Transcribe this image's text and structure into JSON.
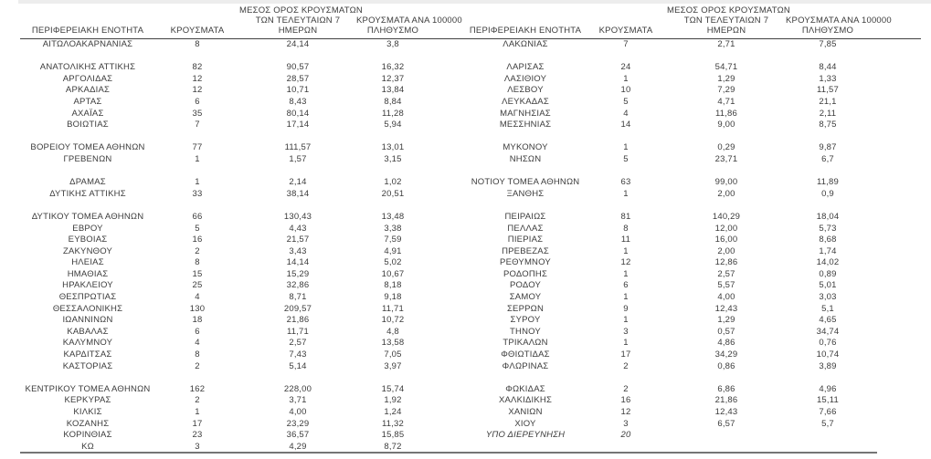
{
  "colors": {
    "text": "#3c3c3c",
    "header_rule": "#404040",
    "bottom_rule": "#757575",
    "top_strip": "#ededed",
    "background": "#ffffff"
  },
  "table": {
    "headers": {
      "region": "ΠΕΡΙΦΕΡΕΙΑΚΗ ΕΝΟΤΗΤΑ",
      "cases": "ΚΡΟΥΣΜΑΤΑ",
      "avg7_line1": "ΜΕΣΟΣ ΟΡΟΣ ΚΡΟΥΣΜΑΤΩΝ",
      "avg7_line2": "ΤΩΝ ΤΕΛΕΥΤΑΙΩΝ 7",
      "avg7_line3": "ΗΜΕΡΩΝ",
      "per100k_line1": "ΚΡΟΥΣΜΑΤΑ ΑΝΑ 100000",
      "per100k_line2": "ΠΛΗΘΥΣΜΟ"
    },
    "rows": [
      {
        "left": {
          "region": "ΑΙΤΩΛΟΑΚΑΡΝΑΝΙΑΣ",
          "cases": "8",
          "avg7": "24,14",
          "per100k": "3,8"
        },
        "right": {
          "region": "ΛΑΚΩΝΙΑΣ",
          "cases": "7",
          "avg7": "2,71",
          "per100k": "7,85"
        }
      },
      {
        "spacer": true
      },
      {
        "left": {
          "region": "ΑΝΑΤΟΛΙΚΗΣ ΑΤΤΙΚΗΣ",
          "cases": "82",
          "avg7": "90,57",
          "per100k": "16,32"
        },
        "right": {
          "region": "ΛΑΡΙΣΑΣ",
          "cases": "24",
          "avg7": "54,71",
          "per100k": "8,44"
        }
      },
      {
        "left": {
          "region": "ΑΡΓΟΛΙΔΑΣ",
          "cases": "12",
          "avg7": "28,57",
          "per100k": "12,37"
        },
        "right": {
          "region": "ΛΑΣΙΘΙΟΥ",
          "cases": "1",
          "avg7": "1,29",
          "per100k": "1,33"
        }
      },
      {
        "left": {
          "region": "ΑΡΚΑΔΙΑΣ",
          "cases": "12",
          "avg7": "10,71",
          "per100k": "13,84"
        },
        "right": {
          "region": "ΛΕΣΒΟΥ",
          "cases": "10",
          "avg7": "7,29",
          "per100k": "11,57"
        }
      },
      {
        "left": {
          "region": "ΑΡΤΑΣ",
          "cases": "6",
          "avg7": "8,43",
          "per100k": "8,84"
        },
        "right": {
          "region": "ΛΕΥΚΑΔΑΣ",
          "cases": "5",
          "avg7": "4,71",
          "per100k": "21,1"
        }
      },
      {
        "left": {
          "region": "ΑΧΑΪΑΣ",
          "cases": "35",
          "avg7": "80,14",
          "per100k": "11,28"
        },
        "right": {
          "region": "ΜΑΓΝΗΣΙΑΣ",
          "cases": "4",
          "avg7": "11,86",
          "per100k": "2,11"
        }
      },
      {
        "left": {
          "region": "ΒΟΙΩΤΙΑΣ",
          "cases": "7",
          "avg7": "17,14",
          "per100k": "5,94"
        },
        "right": {
          "region": "ΜΕΣΣΗΝΙΑΣ",
          "cases": "14",
          "avg7": "9,00",
          "per100k": "8,75"
        }
      },
      {
        "spacer": true
      },
      {
        "left": {
          "region": "ΒΟΡΕΙΟΥ ΤΟΜΕΑ ΑΘΗΝΩΝ",
          "cases": "77",
          "avg7": "111,57",
          "per100k": "13,01"
        },
        "right": {
          "region": "ΜΥΚΟΝΟΥ",
          "cases": "1",
          "avg7": "0,29",
          "per100k": "9,87"
        }
      },
      {
        "left": {
          "region": "ΓΡΕΒΕΝΩΝ",
          "cases": "1",
          "avg7": "1,57",
          "per100k": "3,15"
        },
        "right": {
          "region": "ΝΗΣΩΝ",
          "cases": "5",
          "avg7": "23,71",
          "per100k": "6,7"
        }
      },
      {
        "spacer": true
      },
      {
        "left": {
          "region": "ΔΡΑΜΑΣ",
          "cases": "1",
          "avg7": "2,14",
          "per100k": "1,02"
        },
        "right": {
          "region": "ΝΟΤΙΟΥ ΤΟΜΕΑ ΑΘΗΝΩΝ",
          "cases": "63",
          "avg7": "99,00",
          "per100k": "11,89"
        }
      },
      {
        "left": {
          "region": "ΔΥΤΙΚΗΣ ΑΤΤΙΚΗΣ",
          "cases": "33",
          "avg7": "38,14",
          "per100k": "20,51"
        },
        "right": {
          "region": "ΞΑΝΘΗΣ",
          "cases": "1",
          "avg7": "2,00",
          "per100k": "0,9"
        }
      },
      {
        "spacer": true
      },
      {
        "left": {
          "region": "ΔΥΤΙΚΟΥ ΤΟΜΕΑ ΑΘΗΝΩΝ",
          "cases": "66",
          "avg7": "130,43",
          "per100k": "13,48"
        },
        "right": {
          "region": "ΠΕΙΡΑΙΩΣ",
          "cases": "81",
          "avg7": "140,29",
          "per100k": "18,04"
        }
      },
      {
        "left": {
          "region": "ΕΒΡΟΥ",
          "cases": "5",
          "avg7": "4,43",
          "per100k": "3,38"
        },
        "right": {
          "region": "ΠΕΛΛΑΣ",
          "cases": "8",
          "avg7": "12,00",
          "per100k": "5,73"
        }
      },
      {
        "left": {
          "region": "ΕΥΒΟΙΑΣ",
          "cases": "16",
          "avg7": "21,57",
          "per100k": "7,59"
        },
        "right": {
          "region": "ΠΙΕΡΙΑΣ",
          "cases": "11",
          "avg7": "16,00",
          "per100k": "8,68"
        }
      },
      {
        "left": {
          "region": "ΖΑΚΥΝΘΟΥ",
          "cases": "2",
          "avg7": "3,43",
          "per100k": "4,91"
        },
        "right": {
          "region": "ΠΡΕΒΕΖΑΣ",
          "cases": "1",
          "avg7": "2,00",
          "per100k": "1,74"
        }
      },
      {
        "left": {
          "region": "ΗΛΕΙΑΣ",
          "cases": "8",
          "avg7": "14,14",
          "per100k": "5,02"
        },
        "right": {
          "region": "ΡΕΘΥΜΝΟΥ",
          "cases": "12",
          "avg7": "12,86",
          "per100k": "14,02"
        }
      },
      {
        "left": {
          "region": "ΗΜΑΘΙΑΣ",
          "cases": "15",
          "avg7": "15,29",
          "per100k": "10,67"
        },
        "right": {
          "region": "ΡΟΔΟΠΗΣ",
          "cases": "1",
          "avg7": "2,57",
          "per100k": "0,89"
        }
      },
      {
        "left": {
          "region": "ΗΡΑΚΛΕΙΟΥ",
          "cases": "25",
          "avg7": "32,86",
          "per100k": "8,18"
        },
        "right": {
          "region": "ΡΟΔΟΥ",
          "cases": "6",
          "avg7": "5,57",
          "per100k": "5,01"
        }
      },
      {
        "left": {
          "region": "ΘΕΣΠΡΩΤΙΑΣ",
          "cases": "4",
          "avg7": "8,71",
          "per100k": "9,18"
        },
        "right": {
          "region": "ΣΑΜΟΥ",
          "cases": "1",
          "avg7": "4,00",
          "per100k": "3,03"
        }
      },
      {
        "left": {
          "region": "ΘΕΣΣΑΛΟΝΙΚΗΣ",
          "cases": "130",
          "avg7": "209,57",
          "per100k": "11,71"
        },
        "right": {
          "region": "ΣΕΡΡΩΝ",
          "cases": "9",
          "avg7": "12,43",
          "per100k": "5,1"
        }
      },
      {
        "left": {
          "region": "ΙΩΑΝΝΙΝΩΝ",
          "cases": "18",
          "avg7": "21,86",
          "per100k": "10,72"
        },
        "right": {
          "region": "ΣΥΡΟΥ",
          "cases": "1",
          "avg7": "1,29",
          "per100k": "4,65"
        }
      },
      {
        "left": {
          "region": "ΚΑΒΑΛΑΣ",
          "cases": "6",
          "avg7": "11,71",
          "per100k": "4,8"
        },
        "right": {
          "region": "ΤΗΝΟΥ",
          "cases": "3",
          "avg7": "0,57",
          "per100k": "34,74"
        }
      },
      {
        "left": {
          "region": "ΚΑΛΥΜΝΟΥ",
          "cases": "4",
          "avg7": "2,57",
          "per100k": "13,58"
        },
        "right": {
          "region": "ΤΡΙΚΑΛΩΝ",
          "cases": "1",
          "avg7": "4,86",
          "per100k": "0,76"
        }
      },
      {
        "left": {
          "region": "ΚΑΡΔΙΤΣΑΣ",
          "cases": "8",
          "avg7": "7,43",
          "per100k": "7,05"
        },
        "right": {
          "region": "ΦΘΙΩΤΙΔΑΣ",
          "cases": "17",
          "avg7": "34,29",
          "per100k": "10,74"
        }
      },
      {
        "left": {
          "region": "ΚΑΣΤΟΡΙΑΣ",
          "cases": "2",
          "avg7": "5,14",
          "per100k": "3,97"
        },
        "right": {
          "region": "ΦΛΩΡΙΝΑΣ",
          "cases": "2",
          "avg7": "0,86",
          "per100k": "3,89"
        }
      },
      {
        "spacer": true
      },
      {
        "left": {
          "region": "ΚΕΝΤΡΙΚΟΥ ΤΟΜΕΑ ΑΘΗΝΩΝ",
          "cases": "162",
          "avg7": "228,00",
          "per100k": "15,74"
        },
        "right": {
          "region": "ΦΩΚΙΔΑΣ",
          "cases": "2",
          "avg7": "6,86",
          "per100k": "4,96"
        }
      },
      {
        "left": {
          "region": "ΚΕΡΚΥΡΑΣ",
          "cases": "2",
          "avg7": "3,71",
          "per100k": "1,92"
        },
        "right": {
          "region": "ΧΑΛΚΙΔΙΚΗΣ",
          "cases": "16",
          "avg7": "21,86",
          "per100k": "15,11"
        }
      },
      {
        "left": {
          "region": "ΚΙΛΚΙΣ",
          "cases": "1",
          "avg7": "4,00",
          "per100k": "1,24"
        },
        "right": {
          "region": "ΧΑΝΙΩΝ",
          "cases": "12",
          "avg7": "12,43",
          "per100k": "7,66"
        }
      },
      {
        "left": {
          "region": "ΚΟΖΑΝΗΣ",
          "cases": "17",
          "avg7": "23,29",
          "per100k": "11,32"
        },
        "right": {
          "region": "ΧΙΟΥ",
          "cases": "3",
          "avg7": "6,57",
          "per100k": "5,7"
        }
      },
      {
        "left": {
          "region": "ΚΟΡΙΝΘΙΑΣ",
          "cases": "23",
          "avg7": "36,57",
          "per100k": "15,85"
        },
        "right": {
          "region": "ΥΠΟ ΔΙΕΡΕΥΝΗΣΗ",
          "cases": "20",
          "avg7": "",
          "per100k": "",
          "italic": true
        }
      },
      {
        "left": {
          "region": "ΚΩ",
          "cases": "3",
          "avg7": "4,29",
          "per100k": "8,72"
        },
        "right": {
          "region": "",
          "cases": "",
          "avg7": "",
          "per100k": ""
        }
      }
    ]
  }
}
